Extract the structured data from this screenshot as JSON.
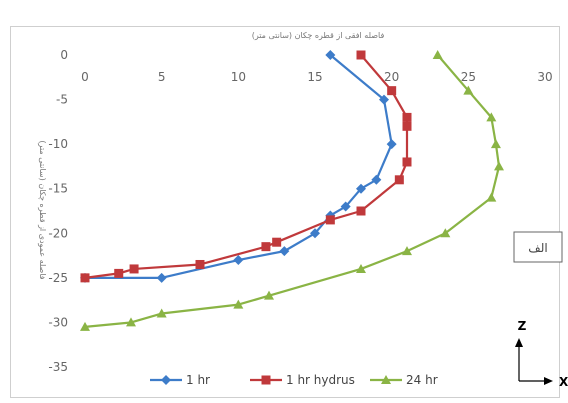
{
  "chart_data": {
    "type": "line",
    "title": "فاصله افقی از قطره چکان (سانتی متر)",
    "ylabel": "فاصله عمودی از قطره چکان (سانتی متر)",
    "xlim": [
      0,
      30
    ],
    "ylim": [
      -35,
      0
    ],
    "x_ticks": [
      "0",
      "5",
      "10",
      "15",
      "20",
      "25",
      "30"
    ],
    "y_ticks": [
      "0",
      "-5",
      "-10",
      "-15",
      "-20",
      "-25",
      "-30",
      "-35"
    ],
    "legend_position": "bottom",
    "series": [
      {
        "name": "1 hr",
        "color": "#3d7cc9",
        "marker": "diamond",
        "points": [
          [
            16,
            0
          ],
          [
            19.5,
            -5
          ],
          [
            20,
            -10
          ],
          [
            19,
            -14
          ],
          [
            18,
            -15
          ],
          [
            17,
            -17
          ],
          [
            16,
            -18
          ],
          [
            15,
            -20
          ],
          [
            13,
            -22
          ],
          [
            10,
            -23
          ],
          [
            5,
            -25
          ],
          [
            0,
            -25
          ]
        ]
      },
      {
        "name": "1 hr hydrus",
        "color": "#c0393b",
        "marker": "square",
        "points": [
          [
            18,
            0
          ],
          [
            20,
            -4
          ],
          [
            21,
            -7
          ],
          [
            21,
            -8
          ],
          [
            21,
            -12
          ],
          [
            20.5,
            -14
          ],
          [
            18,
            -17.5
          ],
          [
            16,
            -18.5
          ],
          [
            12.5,
            -21
          ],
          [
            11.8,
            -21.5
          ],
          [
            7.5,
            -23.5
          ],
          [
            3.2,
            -24
          ],
          [
            2.2,
            -24.5
          ],
          [
            0,
            -25
          ]
        ]
      },
      {
        "name": "24 hr",
        "color": "#8ab445",
        "marker": "triangle",
        "points": [
          [
            23,
            0
          ],
          [
            25,
            -4
          ],
          [
            26.5,
            -7
          ],
          [
            26.8,
            -10
          ],
          [
            27,
            -12.5
          ],
          [
            26.5,
            -16
          ],
          [
            23.5,
            -20
          ],
          [
            21,
            -22
          ],
          [
            18,
            -24
          ],
          [
            12,
            -27
          ],
          [
            10,
            -28
          ],
          [
            5,
            -29
          ],
          [
            3,
            -30
          ],
          [
            0,
            -30.5
          ]
        ]
      }
    ],
    "annotations": {
      "label_box": "الف",
      "axis_z": "Z",
      "axis_x": "X"
    }
  }
}
